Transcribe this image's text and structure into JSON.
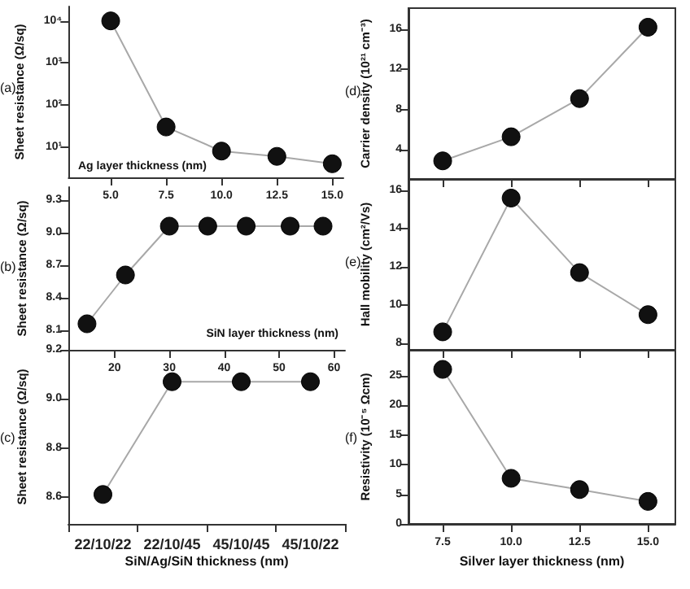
{
  "chart_data": [
    {
      "type": "line",
      "ylabel": "Sheet resistance (Ω/sq)",
      "xlabel": "Ag layer thickness (nm)",
      "annotations": [
        "(a)"
      ],
      "log": true,
      "marker": "circle",
      "x": [
        5,
        7.5,
        10,
        12.5,
        15
      ],
      "series": [
        {
          "color": "#111111",
          "values": [
            10000,
            30,
            8,
            6,
            4
          ]
        }
      ],
      "xlim": [
        3.1,
        15.5
      ],
      "xticks": [
        {
          "value": 5,
          "label": "5.0"
        },
        7.5,
        {
          "value": 10,
          "label": "10.0"
        },
        12.5,
        {
          "value": 15,
          "label": "15.0"
        }
      ],
      "ylim": [
        1.9,
        22000
      ],
      "yticks": [
        {
          "value": 10,
          "label": "10¹"
        },
        {
          "value": 100,
          "label": "10²"
        },
        {
          "value": 1000,
          "label": "10³"
        },
        {
          "value": 10000,
          "label": "10⁴"
        }
      ]
    },
    {
      "type": "line",
      "ylabel": "Sheet resistance (Ω/sq)",
      "xlabel": "SiN layer thickness (nm)",
      "annotations": [
        "(b)"
      ],
      "marker": "circle",
      "x": [
        15,
        22,
        30,
        37,
        44,
        52,
        58
      ],
      "series": [
        {
          "color": "#111111",
          "values": [
            8.16,
            8.61,
            9.06,
            9.06,
            9.06,
            9.06,
            9.06
          ]
        }
      ],
      "xlim": [
        11.6,
        62
      ],
      "xticks": [
        20,
        30,
        40,
        50,
        60
      ],
      "ylim": [
        7.92,
        9.42
      ],
      "yticks": [
        8.1,
        8.4,
        8.7,
        {
          "value": 9,
          "label": "9.0"
        },
        9.3
      ]
    },
    {
      "type": "line",
      "ylabel": "Sheet resistance (Ω/sq)",
      "xlabel": "SiN/Ag/SiN thickness (nm)",
      "annotations": [
        "(c)"
      ],
      "marker": "circle",
      "categories": [
        "22/10/22",
        "22/10/45",
        "45/10/45",
        "45/10/22"
      ],
      "series": [
        {
          "color": "#111111",
          "values": [
            8.61,
            9.07,
            9.07,
            9.07
          ]
        }
      ],
      "ylim": [
        8.49,
        9.2
      ],
      "yticks": [
        8.6,
        8.8,
        {
          "value": 9,
          "label": "9.0"
        },
        9.2
      ]
    },
    {
      "type": "line",
      "ylabel": "Carrier density (10²¹ cm⁻³)",
      "annotations": [
        "(d)"
      ],
      "marker": "circle",
      "tick_labels": "y",
      "x": [
        7.5,
        10,
        12.5,
        15
      ],
      "series": [
        {
          "color": "#111111",
          "values": [
            2.9,
            5.3,
            9.1,
            16.2
          ]
        }
      ],
      "xlim": [
        6.25,
        16
      ],
      "xticks": [
        7.5,
        10,
        12.5,
        15
      ],
      "ylim": [
        1.1,
        18.1
      ],
      "yticks": [
        4,
        8,
        12,
        16
      ]
    },
    {
      "type": "line",
      "ylabel": "Hall mobility (cm²/Vs)",
      "annotations": [
        "(e)"
      ],
      "marker": "circle",
      "tick_labels": "y",
      "x": [
        7.5,
        10,
        12.5,
        15
      ],
      "series": [
        {
          "color": "#111111",
          "values": [
            8.6,
            15.6,
            11.7,
            9.5
          ]
        }
      ],
      "xlim": [
        6.25,
        16
      ],
      "xticks": [
        7.5,
        10,
        12.5,
        15
      ],
      "ylim": [
        7.66,
        16.6
      ],
      "yticks": [
        8,
        10,
        12,
        14,
        16
      ]
    },
    {
      "type": "line",
      "ylabel": "Resistivity (10⁻⁵ Ωcm)",
      "xlabel": "Silver layer thickness (nm)",
      "annotations": [
        "(f)"
      ],
      "marker": "circle",
      "x": [
        7.5,
        10,
        12.5,
        15
      ],
      "series": [
        {
          "color": "#111111",
          "values": [
            26.1,
            7.7,
            5.8,
            3.8
          ]
        }
      ],
      "xlim": [
        6.25,
        16
      ],
      "xticks": [
        7.5,
        {
          "value": 10,
          "label": "10.0"
        },
        12.5,
        {
          "value": 15,
          "label": "15.0"
        }
      ],
      "ylim": [
        0,
        29.4
      ],
      "yticks": [
        0,
        5,
        10,
        15,
        20,
        25
      ]
    }
  ]
}
